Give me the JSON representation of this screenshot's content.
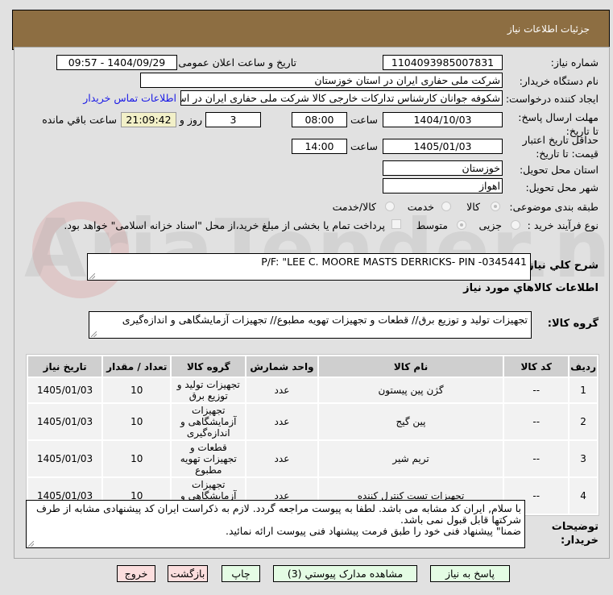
{
  "header": {
    "title": "جزئیات اطلاعات نیاز"
  },
  "watermark": "AriaTender.net",
  "form": {
    "need_number_label": "شماره نیاز:",
    "need_number": "1104093985007831",
    "announce_label": "تاریخ و ساعت اعلان عمومی:",
    "announce_value": "1404/09/29 - 09:57",
    "buyer_org_label": "نام دستگاه خریدار:",
    "buyer_org": "شرکت ملی حفاری ایران در استان خوزستان",
    "creator_label": "ایجاد کننده درخواست:",
    "creator": "شکوفه جوانان کارشناس تدارکات خارجی کالا شرکت ملی حفاری ایران در استان",
    "contact_link": "اطلاعات تماس خریدار",
    "deadline_label": "مهلت ارسال پاسخ: تا تاریخ:",
    "deadline_date": "1404/10/03",
    "time_label": "ساعت",
    "deadline_time": "08:00",
    "days": "3",
    "days_label": "روز و",
    "remaining": "21:09:42",
    "remaining_label": "ساعت باقي مانده",
    "validity_label": "حداقل تاریخ اعتبار قیمت: تا تاریخ:",
    "validity_date": "1405/01/03",
    "validity_time": "14:00",
    "province_label": "استان محل تحویل:",
    "province": "خوزستان",
    "city_label": "شهر محل تحویل:",
    "city": "اهواز",
    "category_label": "طبقه بندی موضوعی:",
    "category_options": [
      "کالا",
      "خدمت",
      "کالا/خدمت"
    ],
    "category_selected": "کالا",
    "process_label": "نوع فرآیند خرید :",
    "process_options": [
      "جزیی",
      "متوسط"
    ],
    "process_selected": "متوسط",
    "payment_note": "پرداخت تمام یا بخشی از مبلغ خرید،از محل \"اسناد خزانه اسلامی\" خواهد بود.",
    "payment_checked": false,
    "description_label": "شرح کلي نیاز:",
    "description": "P/F: \"LEE C. MOORE MASTS DERRICKS- PIN -0345441",
    "goods_heading": "اطلاعات کالاهاي مورد نیاز",
    "group_label": "گروه کالا:",
    "group_value": "تجهیزات تولید و توزیع برق//  قطعات و تجهیزات تهویه مطبوع// تجهیزات آزمایشگاهی و اندازه‌گیری"
  },
  "table": {
    "headers": [
      "ردیف",
      "کد کالا",
      "نام کالا",
      "واحد شمارش",
      "گروه کالا",
      "تعداد / مقدار",
      "تاریخ نیاز"
    ],
    "rows": [
      [
        "1",
        "--",
        "گژن پین پیستون",
        "عدد",
        "تجهیزات تولید و توزیع برق",
        "10",
        "1405/01/03"
      ],
      [
        "2",
        "--",
        "پین گیج",
        "عدد",
        "تجهیزات آزمایشگاهی و اندازه‌گیری",
        "10",
        "1405/01/03"
      ],
      [
        "3",
        "--",
        "تریم شیر",
        "عدد",
        "قطعات و تجهیزات تهویه مطبوع",
        "10",
        "1405/01/03"
      ],
      [
        "4",
        "--",
        "تجهیزات تست کنترل کننده",
        "عدد",
        "تجهیزات آزمایشگاهی و اندازه‌گیری",
        "10",
        "1405/01/03"
      ]
    ]
  },
  "notes": {
    "label": "توضیحات خریدار:",
    "lines": [
      "با سلام, ایران کد مشابه می باشد. لطفا به پیوست مراجعه گردد. لازم به ذکراست ایران کد پیشنهادی مشابه از طرف شرکتها قابل قبول نمی باشد.",
      "ضمنا\" پیشنهاد فنی خود را طبق فرمت پیشنهاد فنی پیوست ارائه نمائید."
    ]
  },
  "buttons": {
    "reply": "پاسخ به نیاز",
    "attachments": "مشاهده مدارک پیوستي (3)",
    "print": "چاپ",
    "back": "بازگشت",
    "exit": "خروج"
  },
  "colors": {
    "header": "#8d6e42",
    "green_button": "#e4fce4",
    "pink_button": "#fcdede",
    "timer": "#f2f0c8",
    "link": "#1a1ae6"
  }
}
